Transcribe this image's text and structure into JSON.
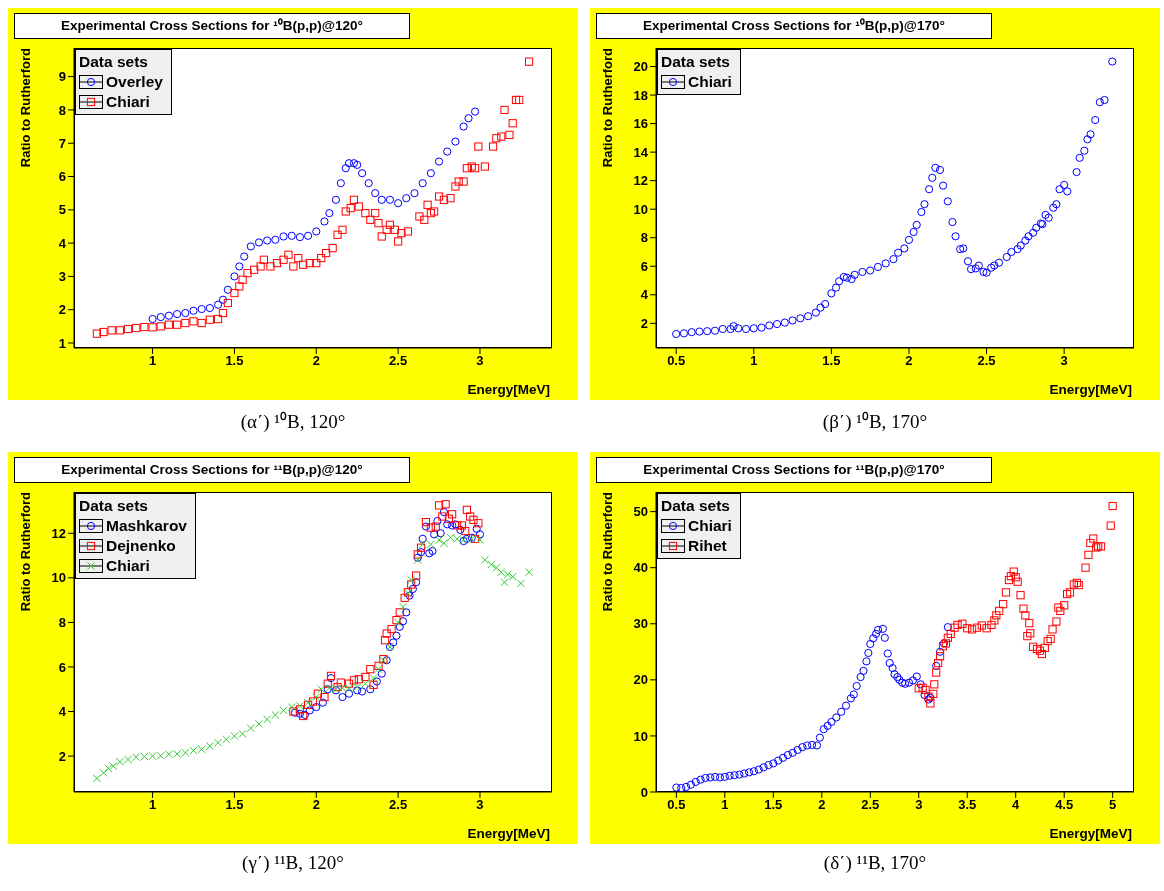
{
  "chart_data": [
    {
      "type": "scatter",
      "title": "Experimental Cross Sections for ¹⁰B(p,p)@120°",
      "xlabel": "Energy[MeV]",
      "ylabel": "Ratio to Rutherford",
      "legend_title": "Data sets",
      "legend": "top left",
      "annotations": [
        "(α΄) ¹⁰B, 120°"
      ],
      "xlim": [
        0.52,
        3.44
      ],
      "xticks": [
        1,
        1.5,
        2,
        2.5,
        3
      ],
      "ylim": [
        0.85,
        9.86
      ],
      "yticks": [
        1,
        2,
        3,
        4,
        5,
        6,
        7,
        8,
        9
      ],
      "grid": false,
      "series": [
        {
          "name": "Overley",
          "color": "#0000ff",
          "marker": "circle",
          "x": [
            1.0,
            1.05,
            1.1,
            1.15,
            1.2,
            1.25,
            1.3,
            1.35,
            1.4,
            1.43,
            1.46,
            1.5,
            1.53,
            1.56,
            1.6,
            1.65,
            1.7,
            1.75,
            1.8,
            1.85,
            1.9,
            1.95,
            2.0,
            2.05,
            2.08,
            2.12,
            2.15,
            2.18,
            2.2,
            2.23,
            2.25,
            2.28,
            2.32,
            2.36,
            2.4,
            2.45,
            2.5,
            2.55,
            2.6,
            2.65,
            2.7,
            2.75,
            2.8,
            2.85,
            2.9,
            2.93,
            2.97
          ],
          "values": [
            1.72,
            1.78,
            1.82,
            1.87,
            1.9,
            1.97,
            2.02,
            2.05,
            2.15,
            2.3,
            2.6,
            3.0,
            3.3,
            3.6,
            3.9,
            4.02,
            4.08,
            4.1,
            4.2,
            4.22,
            4.18,
            4.22,
            4.35,
            4.65,
            4.9,
            5.3,
            5.8,
            6.25,
            6.4,
            6.4,
            6.35,
            6.1,
            5.8,
            5.5,
            5.3,
            5.3,
            5.2,
            5.35,
            5.5,
            5.8,
            6.1,
            6.45,
            6.75,
            7.05,
            7.5,
            7.75,
            7.95
          ]
        },
        {
          "name": "Chiari",
          "color": "#ff0000",
          "marker": "square",
          "x": [
            0.66,
            0.7,
            0.75,
            0.8,
            0.85,
            0.9,
            0.95,
            1.0,
            1.05,
            1.1,
            1.15,
            1.2,
            1.25,
            1.3,
            1.35,
            1.4,
            1.43,
            1.46,
            1.5,
            1.53,
            1.55,
            1.58,
            1.62,
            1.66,
            1.68,
            1.72,
            1.76,
            1.8,
            1.83,
            1.86,
            1.89,
            1.92,
            1.96,
            2.0,
            2.03,
            2.06,
            2.1,
            2.13,
            2.16,
            2.18,
            2.21,
            2.23,
            2.26,
            2.3,
            2.33,
            2.36,
            2.38,
            2.4,
            2.43,
            2.45,
            2.48,
            2.5,
            2.52,
            2.56,
            2.63,
            2.66,
            2.68,
            2.7,
            2.72,
            2.75,
            2.78,
            2.82,
            2.85,
            2.87,
            2.9,
            2.92,
            2.95,
            2.97,
            2.99,
            3.03,
            3.08,
            3.1,
            3.13,
            3.15,
            3.18,
            3.2,
            3.22,
            3.24,
            3.3
          ],
          "values": [
            1.28,
            1.33,
            1.38,
            1.38,
            1.42,
            1.45,
            1.48,
            1.47,
            1.5,
            1.55,
            1.55,
            1.6,
            1.65,
            1.6,
            1.7,
            1.72,
            1.9,
            2.2,
            2.5,
            2.7,
            2.9,
            3.1,
            3.2,
            3.3,
            3.5,
            3.3,
            3.4,
            3.5,
            3.65,
            3.3,
            3.55,
            3.35,
            3.4,
            3.4,
            3.55,
            3.7,
            3.85,
            4.25,
            4.4,
            4.95,
            5.05,
            5.3,
            5.1,
            4.9,
            4.7,
            4.9,
            4.6,
            4.2,
            4.4,
            4.55,
            4.4,
            4.05,
            4.3,
            4.35,
            4.8,
            4.7,
            5.15,
            4.9,
            4.95,
            5.4,
            5.3,
            5.35,
            5.7,
            5.85,
            5.85,
            6.25,
            6.3,
            6.25,
            6.9,
            6.3,
            6.9,
            7.15,
            7.2,
            8.0,
            7.25,
            7.6,
            8.3,
            8.3,
            9.45
          ]
        }
      ]
    },
    {
      "type": "scatter",
      "title": "Experimental Cross Sections for ¹⁰B(p,p)@170°",
      "xlabel": "Energy[MeV]",
      "ylabel": "Ratio to Rutherford",
      "legend_title": "Data sets",
      "legend": "top left",
      "annotations": [
        "(β΄) ¹⁰B, 170°"
      ],
      "xlim": [
        0.37,
        3.45
      ],
      "xticks": [
        0.5,
        1,
        1.5,
        2,
        2.5,
        3
      ],
      "ylim": [
        0.27,
        21.3
      ],
      "yticks": [
        2,
        4,
        6,
        8,
        10,
        12,
        14,
        16,
        18,
        20
      ],
      "grid": false,
      "series": [
        {
          "name": "Chiari",
          "color": "#0000ff",
          "marker": "circle",
          "x": [
            0.5,
            0.55,
            0.6,
            0.65,
            0.7,
            0.75,
            0.8,
            0.85,
            0.87,
            0.9,
            0.95,
            1.0,
            1.05,
            1.1,
            1.15,
            1.2,
            1.25,
            1.3,
            1.35,
            1.4,
            1.43,
            1.46,
            1.5,
            1.53,
            1.55,
            1.58,
            1.6,
            1.63,
            1.65,
            1.7,
            1.75,
            1.8,
            1.85,
            1.9,
            1.93,
            1.97,
            2.0,
            2.03,
            2.05,
            2.08,
            2.1,
            2.13,
            2.15,
            2.17,
            2.2,
            2.22,
            2.25,
            2.28,
            2.3,
            2.33,
            2.35,
            2.38,
            2.4,
            2.43,
            2.45,
            2.48,
            2.5,
            2.53,
            2.55,
            2.58,
            2.63,
            2.66,
            2.7,
            2.72,
            2.75,
            2.77,
            2.8,
            2.82,
            2.85,
            2.86,
            2.88,
            2.9,
            2.93,
            2.95,
            2.97,
            3.0,
            3.02,
            3.08,
            3.1,
            3.13,
            3.15,
            3.17,
            3.2,
            3.23,
            3.26,
            3.31
          ],
          "values": [
            1.25,
            1.3,
            1.38,
            1.42,
            1.45,
            1.48,
            1.6,
            1.6,
            1.8,
            1.65,
            1.6,
            1.65,
            1.7,
            1.85,
            1.95,
            2.05,
            2.2,
            2.35,
            2.5,
            2.75,
            3.1,
            3.35,
            4.1,
            4.5,
            4.95,
            5.25,
            5.2,
            5.1,
            5.4,
            5.6,
            5.7,
            5.95,
            6.2,
            6.5,
            6.95,
            7.25,
            7.85,
            8.4,
            8.9,
            9.8,
            10.35,
            11.4,
            12.2,
            12.9,
            12.75,
            11.65,
            10.55,
            9.1,
            8.1,
            7.2,
            7.25,
            6.35,
            5.8,
            5.85,
            6.05,
            5.6,
            5.55,
            5.9,
            6.05,
            6.25,
            6.65,
            7.0,
            7.2,
            7.45,
            7.8,
            8.1,
            8.35,
            8.7,
            9.0,
            8.95,
            9.6,
            9.4,
            10.1,
            10.35,
            11.4,
            11.7,
            11.25,
            12.6,
            13.6,
            14.1,
            14.9,
            15.25,
            16.25,
            17.5,
            17.65,
            20.35
          ]
        }
      ]
    },
    {
      "type": "scatter",
      "title": "Experimental Cross Sections for ¹¹B(p,p)@120°",
      "xlabel": "Energy[MeV]",
      "ylabel": "Ratio to Rutherford",
      "legend_title": "Data sets",
      "legend": "top left",
      "annotations": [
        "(γ΄) ¹¹B, 120°"
      ],
      "xlim": [
        0.52,
        3.44
      ],
      "xticks": [
        1,
        1.5,
        2,
        2.5,
        3
      ],
      "ylim": [
        0.39,
        13.85
      ],
      "yticks": [
        2,
        4,
        6,
        8,
        10,
        12
      ],
      "grid": false,
      "series": [
        {
          "name": "Mashkarov",
          "color": "#0000ff",
          "marker": "circle",
          "x": [
            1.87,
            1.9,
            1.93,
            1.96,
            2.0,
            2.04,
            2.07,
            2.09,
            2.12,
            2.16,
            2.2,
            2.25,
            2.28,
            2.33,
            2.37,
            2.4,
            2.43,
            2.45,
            2.47,
            2.49,
            2.51,
            2.53,
            2.55,
            2.57,
            2.59,
            2.61,
            2.62,
            2.64,
            2.65,
            2.67,
            2.69,
            2.71,
            2.72,
            2.74,
            2.76,
            2.78,
            2.8,
            2.83,
            2.85,
            2.88,
            2.9,
            2.92,
            2.95,
            2.98,
            3.0
          ],
          "values": [
            3.95,
            3.9,
            3.85,
            4.05,
            4.2,
            4.4,
            5.0,
            5.5,
            4.95,
            4.65,
            4.8,
            4.95,
            4.9,
            5.0,
            5.35,
            5.7,
            6.3,
            6.9,
            7.1,
            7.4,
            7.8,
            8.05,
            8.45,
            9.2,
            9.5,
            9.8,
            10.9,
            11.15,
            11.75,
            12.3,
            11.1,
            11.2,
            11.95,
            12.55,
            12.0,
            12.95,
            12.4,
            12.35,
            12.4,
            12.15,
            11.65,
            11.75,
            11.8,
            12.2,
            11.95
          ]
        },
        {
          "name": "Dejnenko",
          "color": "#ff0000",
          "marker": "square",
          "x": [
            1.86,
            1.9,
            1.92,
            1.95,
            1.98,
            2.01,
            2.05,
            2.07,
            2.09,
            2.13,
            2.15,
            2.2,
            2.23,
            2.26,
            2.3,
            2.33,
            2.35,
            2.38,
            2.41,
            2.42,
            2.43,
            2.46,
            2.49,
            2.51,
            2.54,
            2.56,
            2.58,
            2.61,
            2.62,
            2.64,
            2.67,
            2.7,
            2.73,
            2.75,
            2.77,
            2.79,
            2.81,
            2.83,
            2.86,
            2.89,
            2.91,
            2.92,
            2.94,
            2.96,
            2.97,
            2.99
          ],
          "values": [
            4.0,
            4.1,
            3.8,
            4.3,
            4.45,
            4.8,
            4.65,
            5.25,
            5.6,
            5.1,
            5.3,
            5.25,
            5.4,
            5.45,
            5.55,
            5.9,
            5.2,
            6.05,
            6.35,
            7.2,
            7.5,
            7.7,
            8.1,
            8.45,
            9.1,
            9.35,
            9.7,
            10.1,
            11.05,
            11.35,
            12.5,
            12.25,
            12.3,
            13.25,
            12.75,
            13.3,
            12.65,
            12.85,
            12.35,
            12.35,
            12.1,
            13.05,
            12.75,
            12.6,
            11.75,
            12.45
          ]
        },
        {
          "name": "Chiari",
          "color": "#33cc33",
          "marker": "cross",
          "x": [
            0.66,
            0.7,
            0.73,
            0.76,
            0.8,
            0.85,
            0.9,
            0.95,
            1.0,
            1.05,
            1.1,
            1.15,
            1.2,
            1.25,
            1.3,
            1.35,
            1.4,
            1.45,
            1.5,
            1.55,
            1.6,
            1.65,
            1.7,
            1.75,
            1.8,
            1.85,
            1.9,
            1.95,
            2.0,
            2.03,
            2.08,
            2.12,
            2.16,
            2.2,
            2.25,
            2.3,
            2.35,
            2.38,
            2.41,
            2.45,
            2.5,
            2.53,
            2.56,
            2.58,
            2.62,
            2.65,
            2.7,
            2.75,
            2.78,
            2.82,
            2.86,
            2.9,
            2.95,
            3.0,
            3.03,
            3.07,
            3.1,
            3.13,
            3.15,
            3.17,
            3.2,
            3.25,
            3.3
          ],
          "values": [
            1.0,
            1.25,
            1.45,
            1.55,
            1.75,
            1.85,
            1.95,
            1.98,
            2.0,
            2.02,
            2.08,
            2.1,
            2.15,
            2.25,
            2.3,
            2.45,
            2.6,
            2.75,
            2.9,
            3.0,
            3.25,
            3.45,
            3.65,
            3.85,
            4.05,
            4.2,
            4.25,
            4.4,
            4.65,
            5.0,
            5.05,
            5.0,
            5.05,
            5.05,
            5.1,
            5.25,
            5.5,
            5.9,
            6.3,
            6.9,
            8.0,
            8.7,
            9.3,
            9.9,
            10.8,
            11.5,
            11.5,
            11.7,
            11.55,
            11.8,
            11.75,
            11.7,
            11.75,
            11.7,
            10.8,
            10.6,
            10.45,
            10.25,
            9.8,
            10.15,
            10.05,
            9.75,
            10.25
          ]
        }
      ]
    },
    {
      "type": "scatter",
      "title": "Experimental Cross Sections for ¹¹B(p,p)@170°",
      "xlabel": "Energy[MeV]",
      "ylabel": "Ratio to Rutherford",
      "legend_title": "Data sets",
      "legend": "top left",
      "annotations": [
        "(δ΄) ¹¹B, 170°"
      ],
      "xlim": [
        0.29,
        5.22
      ],
      "xticks": [
        0.5,
        1,
        1.5,
        2,
        2.5,
        3,
        3.5,
        4,
        4.5,
        5
      ],
      "ylim": [
        0,
        53.5
      ],
      "yticks": [
        0,
        10,
        20,
        30,
        40,
        50
      ],
      "grid": false,
      "series": [
        {
          "name": "Chiari",
          "color": "#0000ff",
          "marker": "circle",
          "x": [
            0.5,
            0.55,
            0.6,
            0.65,
            0.7,
            0.75,
            0.8,
            0.85,
            0.9,
            0.95,
            1.0,
            1.05,
            1.1,
            1.15,
            1.2,
            1.25,
            1.3,
            1.35,
            1.4,
            1.45,
            1.5,
            1.55,
            1.6,
            1.65,
            1.7,
            1.75,
            1.8,
            1.85,
            1.9,
            1.95,
            1.98,
            2.02,
            2.06,
            2.1,
            2.15,
            2.2,
            2.25,
            2.3,
            2.33,
            2.36,
            2.4,
            2.43,
            2.46,
            2.48,
            2.5,
            2.53,
            2.56,
            2.58,
            2.63,
            2.65,
            2.68,
            2.7,
            2.73,
            2.75,
            2.78,
            2.8,
            2.83,
            2.86,
            2.9,
            2.94,
            2.98,
            3.02,
            3.06,
            3.1,
            3.12,
            3.18,
            3.22,
            3.26,
            3.3
          ],
          "values": [
            0.8,
            0.7,
            0.9,
            1.3,
            1.8,
            2.2,
            2.5,
            2.6,
            2.7,
            2.6,
            2.7,
            2.9,
            3.0,
            3.1,
            3.3,
            3.5,
            3.7,
            4.0,
            4.4,
            4.8,
            5.1,
            5.6,
            6.1,
            6.6,
            7.0,
            7.5,
            8.0,
            8.3,
            8.4,
            8.3,
            9.7,
            11.2,
            11.8,
            12.5,
            13.3,
            14.3,
            15.4,
            16.7,
            17.4,
            18.9,
            20.5,
            21.6,
            23.3,
            24.8,
            26.4,
            27.4,
            28.2,
            28.9,
            29.1,
            27.5,
            24.7,
            23.0,
            22.1,
            21.0,
            20.5,
            20.0,
            19.5,
            19.3,
            19.5,
            19.9,
            20.6,
            19.2,
            17.3,
            16.5,
            16.8,
            22.5,
            25.0,
            26.5,
            29.4
          ]
        },
        {
          "name": "Rihet",
          "color": "#ff0000",
          "marker": "square",
          "x": [
            3.0,
            3.04,
            3.07,
            3.1,
            3.12,
            3.15,
            3.16,
            3.18,
            3.2,
            3.22,
            3.25,
            3.28,
            3.3,
            3.33,
            3.37,
            3.4,
            3.45,
            3.5,
            3.55,
            3.6,
            3.65,
            3.7,
            3.75,
            3.78,
            3.8,
            3.83,
            3.87,
            3.9,
            3.93,
            3.95,
            3.98,
            4.0,
            4.02,
            4.05,
            4.08,
            4.1,
            4.12,
            4.14,
            4.15,
            4.18,
            4.22,
            4.25,
            4.27,
            4.3,
            4.33,
            4.36,
            4.38,
            4.42,
            4.44,
            4.46,
            4.5,
            4.53,
            4.56,
            4.6,
            4.63,
            4.65,
            4.72,
            4.75,
            4.77,
            4.8,
            4.83,
            4.85,
            4.88,
            4.98,
            5.0
          ],
          "values": [
            18.5,
            18.6,
            18.2,
            17.0,
            15.8,
            17.5,
            19.2,
            21.3,
            23.0,
            24.2,
            26.0,
            26.5,
            27.5,
            28.2,
            29.3,
            29.8,
            30.0,
            29.2,
            29.0,
            29.3,
            29.7,
            29.2,
            29.8,
            30.6,
            31.5,
            32.3,
            33.5,
            35.6,
            37.8,
            38.5,
            39.3,
            38.3,
            37.5,
            35.1,
            32.7,
            31.5,
            27.8,
            30.1,
            28.3,
            25.9,
            25.5,
            25.2,
            24.6,
            25.7,
            26.9,
            27.3,
            29.0,
            30.4,
            32.9,
            32.3,
            33.3,
            35.3,
            35.6,
            37.0,
            37.3,
            36.9,
            40.0,
            42.3,
            44.4,
            45.2,
            43.6,
            43.8,
            43.8,
            47.5,
            51.0
          ]
        }
      ]
    }
  ]
}
